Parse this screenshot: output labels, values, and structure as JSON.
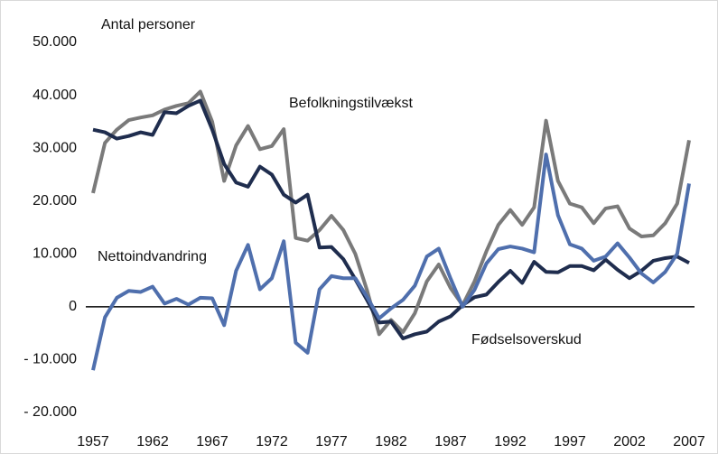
{
  "chart_data": {
    "type": "line",
    "ylabel": "Antal personer",
    "x": [
      1957,
      1958,
      1959,
      1960,
      1961,
      1962,
      1963,
      1964,
      1965,
      1966,
      1967,
      1968,
      1969,
      1970,
      1971,
      1972,
      1973,
      1974,
      1975,
      1976,
      1977,
      1978,
      1979,
      1980,
      1981,
      1982,
      1983,
      1984,
      1985,
      1986,
      1987,
      1988,
      1989,
      1990,
      1991,
      1992,
      1993,
      1994,
      1995,
      1996,
      1997,
      1998,
      1999,
      2000,
      2001,
      2002,
      2003,
      2004,
      2005,
      2006,
      2007
    ],
    "series": [
      {
        "name": "Befolkningstilvækst",
        "color": "#7a7a7a",
        "values": [
          21500,
          31000,
          33500,
          35300,
          35800,
          36200,
          37300,
          38000,
          38500,
          40700,
          35000,
          23800,
          30500,
          34200,
          29800,
          30400,
          33600,
          13000,
          12500,
          14500,
          17200,
          14500,
          10000,
          3000,
          -5200,
          -2500,
          -4800,
          -1200,
          4800,
          8000,
          3500,
          300,
          4800,
          10500,
          15500,
          18300,
          15500,
          18800,
          35200,
          23800,
          19500,
          18800,
          15800,
          18600,
          19000,
          14800,
          13300,
          13500,
          15800,
          19500,
          31500
        ]
      },
      {
        "name": "Fødselsoverskud",
        "color": "#1f2d4e",
        "values": [
          33500,
          33000,
          31800,
          32300,
          33000,
          32500,
          36800,
          36600,
          38000,
          39000,
          33500,
          27000,
          23500,
          22700,
          26500,
          25000,
          21200,
          19700,
          21200,
          11200,
          11300,
          9000,
          5200,
          1200,
          -3000,
          -2800,
          -6000,
          -5200,
          -4700,
          -2800,
          -1800,
          300,
          1800,
          2300,
          4700,
          6800,
          4500,
          8500,
          6600,
          6500,
          7700,
          7700,
          6900,
          8900,
          7000,
          5400,
          6800,
          8700,
          9200,
          9500,
          8300
        ]
      },
      {
        "name": "Nettoindvandring",
        "color": "#4f6fad",
        "values": [
          -12000,
          -2000,
          1700,
          3000,
          2800,
          3800,
          600,
          1500,
          400,
          1700,
          1600,
          -3500,
          6800,
          11700,
          3300,
          5400,
          12400,
          -6800,
          -8700,
          3300,
          5800,
          5400,
          5400,
          1800,
          -2200,
          -300,
          1300,
          4000,
          9500,
          11000,
          5300,
          0,
          3200,
          8200,
          10900,
          11400,
          11000,
          10300,
          28800,
          17300,
          11800,
          11000,
          8700,
          9500,
          12000,
          9300,
          6300,
          4600,
          6600,
          10000,
          23300
        ]
      }
    ],
    "xlim": [
      1957,
      2007
    ],
    "xticks": [
      1957,
      1962,
      1967,
      1972,
      1977,
      1982,
      1987,
      1992,
      1997,
      2002,
      2007
    ],
    "ylim": [
      -20000,
      50000
    ],
    "yticks": [
      {
        "value": -20000,
        "label": "- 20.000"
      },
      {
        "value": -10000,
        "label": "- 10.000"
      },
      0,
      {
        "value": 10000,
        "label": "10.000"
      },
      {
        "value": 20000,
        "label": "20.000"
      },
      {
        "value": 30000,
        "label": "30.000"
      },
      {
        "value": 40000,
        "label": "40.000"
      },
      {
        "value": 50000,
        "label": "50.000"
      }
    ],
    "grid": false
  }
}
